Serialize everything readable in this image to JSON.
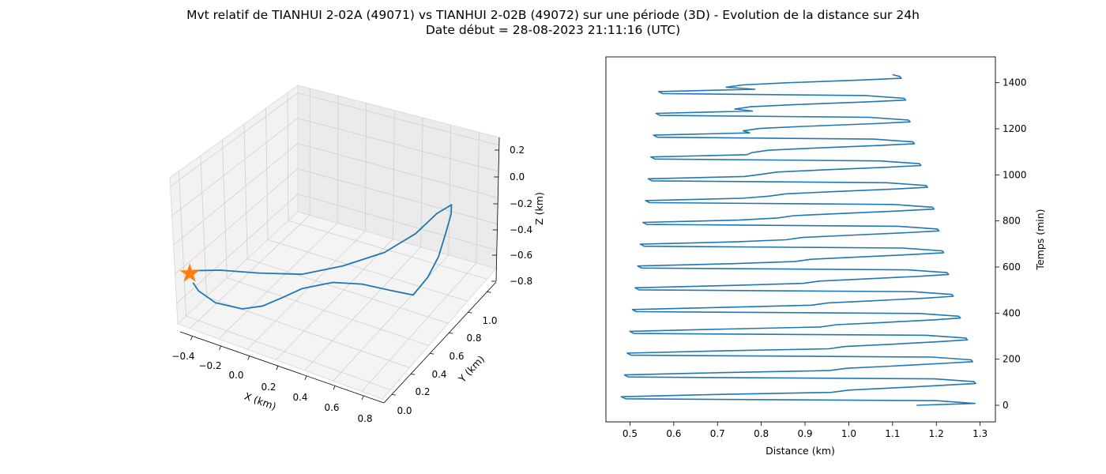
{
  "title": "Mvt relatif de TIANHUI 2-02A (49071) vs TIANHUI 2-02B (49072) sur une période (3D) - Evolution de la distance sur 24h",
  "subtitle": "Date début = 28-08-2023 21:11:16 (UTC)",
  "colors": {
    "line": "#1f77b4",
    "marker": "#ff7f0e",
    "pane_back": "#ebebeb",
    "pane_side": "#f2f2f2",
    "pane_floor": "#f4f4f4",
    "grid": "#cfcfcf"
  },
  "chart_data": [
    {
      "type": "line3d",
      "xlabel": "X (km)",
      "ylabel": "Y (km)",
      "zlabel": "Z (km)",
      "xticks": [
        "−0.4",
        "−0.2",
        "0.0",
        "0.2",
        "0.4",
        "0.6",
        "0.8"
      ],
      "yticks": [
        "0.0",
        "0.2",
        "0.4",
        "0.6",
        "0.8",
        "1.0"
      ],
      "zticks": [
        "0.2",
        "0.0",
        "−0.2",
        "−0.4",
        "−0.6",
        "−0.8"
      ],
      "marker": {
        "shape": "star",
        "x": -0.4,
        "y": 0.0,
        "z": -0.45
      },
      "series": [
        {
          "x": [
            -0.38,
            -0.36,
            -0.28,
            -0.15,
            -0.06,
            0.01,
            0.08,
            0.2,
            0.32,
            0.45,
            0.55,
            0.62,
            0.67,
            0.7,
            0.71,
            0.7,
            0.62,
            0.52,
            0.38,
            0.2,
            0.03,
            -0.15,
            -0.3,
            -0.4
          ],
          "y": [
            0.0,
            0.02,
            0.06,
            0.12,
            0.18,
            0.26,
            0.35,
            0.46,
            0.56,
            0.64,
            0.7,
            0.74,
            0.77,
            0.8,
            0.84,
            0.86,
            0.84,
            0.78,
            0.69,
            0.56,
            0.42,
            0.28,
            0.14,
            0.03
          ],
          "z": [
            -0.52,
            -0.6,
            -0.7,
            -0.74,
            -0.72,
            -0.68,
            -0.64,
            -0.62,
            -0.66,
            -0.72,
            -0.76,
            -0.6,
            -0.42,
            -0.22,
            -0.08,
            -0.02,
            -0.12,
            -0.3,
            -0.46,
            -0.56,
            -0.6,
            -0.56,
            -0.49,
            -0.45
          ]
        }
      ]
    },
    {
      "type": "line",
      "xlabel": "Distance (km)",
      "ylabel": "Temps (min)",
      "xlim": [
        0.445,
        1.335
      ],
      "ylim": [
        -72,
        1512
      ],
      "xticks": [
        0.5,
        0.6,
        0.7,
        0.8,
        0.9,
        1.0,
        1.1,
        1.2,
        1.3
      ],
      "yticks": [
        0,
        200,
        400,
        600,
        800,
        1000,
        1200,
        1400
      ],
      "period_min": 94.6,
      "series": [
        {
          "t": [
            0,
            8,
            20,
            28,
            37,
            47,
            56,
            66,
            75,
            87,
            94.6,
            102.6,
            114.6,
            122.6,
            131.6,
            141.6,
            150.6,
            160.6,
            169.6,
            181.6,
            189.2,
            197.2,
            209.2,
            217.2,
            226.2,
            236.2,
            245.2,
            255.2,
            264.2,
            276.2,
            283.8,
            291.8,
            303.8,
            311.8,
            320.8,
            330.8,
            339.8,
            349.8,
            358.8,
            370.8,
            378.4,
            386.4,
            398.4,
            406.4,
            415.4,
            425.4,
            434.4,
            444.4,
            453.4,
            465.4,
            473.0,
            481.0,
            493.0,
            501.0,
            510.0,
            520.0,
            529.0,
            539.0,
            548.0,
            560.0,
            567.6,
            575.6,
            587.6,
            595.6,
            604.6,
            614.6,
            623.6,
            633.6,
            642.6,
            654.6,
            662.2,
            670.2,
            682.2,
            690.2,
            699.2,
            709.2,
            718.2,
            728.2,
            737.2,
            749.2,
            756.8,
            764.8,
            776.8,
            784.8,
            793.8,
            803.8,
            812.8,
            822.8,
            831.8,
            843.8,
            851.4,
            859.4,
            871.4,
            879.4,
            888.4,
            898.4,
            907.4,
            917.4,
            926.4,
            938.4,
            946.0,
            954.0,
            966.0,
            974.0,
            983.0,
            993.0,
            1002.0,
            1012.0,
            1021.0,
            1033.0,
            1040.6,
            1048.6,
            1060.6,
            1068.6,
            1077.6,
            1087.6,
            1096.6,
            1106.6,
            1115.6,
            1127.6,
            1135.2,
            1143.2,
            1155.2,
            1163.2,
            1172.2,
            1182.2,
            1191.2,
            1201.2,
            1210.2,
            1222.2,
            1229.8,
            1237.8,
            1249.8,
            1257.8,
            1266.8,
            1276.8,
            1285.8,
            1295.8,
            1304.8,
            1316.8,
            1324.4,
            1332.4,
            1344.4,
            1352.4,
            1361.4,
            1371.4,
            1380.4,
            1390.4,
            1399.4,
            1411.4,
            1419.0,
            1427.0,
            1435.0
          ],
          "d": [
            1.155,
            1.288,
            1.2,
            0.49,
            0.48,
            0.7,
            0.96,
            1.0,
            1.1,
            1.22,
            1.29,
            1.286,
            1.196,
            0.496,
            0.487,
            0.707,
            0.9555,
            0.9945,
            1.0945,
            1.2145,
            1.283,
            1.2795,
            1.1895,
            0.5025,
            0.4935,
            0.7135,
            0.954,
            0.992,
            1.092,
            1.208,
            1.271,
            1.2675,
            1.1775,
            0.5085,
            0.4995,
            0.7195,
            0.9345,
            0.972,
            1.072,
            1.193,
            1.255,
            1.2515,
            1.1615,
            0.5145,
            0.5055,
            0.7255,
            0.915,
            0.9525,
            1.0525,
            1.178,
            1.239,
            1.2355,
            1.1455,
            0.5205,
            0.5115,
            0.7315,
            0.8955,
            0.933,
            1.033,
            1.163,
            1.228,
            1.2245,
            1.1345,
            0.5265,
            0.5175,
            0.7375,
            0.876,
            0.9135,
            1.0135,
            1.148,
            1.217,
            1.2135,
            1.1235,
            0.5325,
            0.5235,
            0.7435,
            0.8565,
            0.894,
            0.994,
            1.133,
            1.206,
            1.2025,
            1.1125,
            0.5385,
            0.5295,
            0.7495,
            0.837,
            0.8745,
            0.9745,
            1.118,
            1.195,
            1.1915,
            1.1015,
            0.5445,
            0.5355,
            0.7555,
            0.8175,
            0.855,
            0.955,
            1.103,
            1.18,
            1.1765,
            1.0865,
            0.5505,
            0.5415,
            0.7615,
            0.798,
            0.8355,
            0.9355,
            1.088,
            1.165,
            1.1615,
            1.0715,
            0.5565,
            0.5475,
            0.7675,
            0.7785,
            0.816,
            0.916,
            1.073,
            1.15,
            1.1465,
            1.0565,
            0.5625,
            0.5535,
            0.7735,
            0.759,
            0.7965,
            0.8965,
            1.058,
            1.14,
            1.1365,
            1.0465,
            0.5685,
            0.5595,
            0.7795,
            0.7395,
            0.777,
            0.877,
            1.043,
            1.13,
            1.1265,
            1.0365,
            0.5745,
            0.5655,
            0.7855,
            0.72,
            0.7575,
            0.8575,
            1.028,
            1.12,
            1.1165,
            1.1
          ]
        }
      ]
    }
  ]
}
